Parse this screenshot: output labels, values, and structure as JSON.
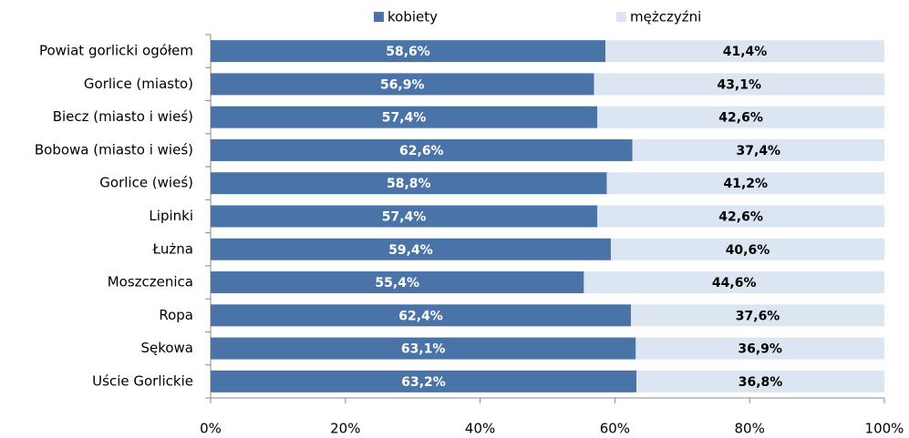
{
  "chart_data": {
    "type": "stacked-bar-horizontal",
    "categories": [
      "Powiat gorlicki ogółem",
      "Gorlice (miasto)",
      "Biecz (miasto  i wieś)",
      "Bobowa (miasto  i wieś)",
      "Gorlice (wieś)",
      "Lipinki",
      "Łużna",
      "Moszczenica",
      "Ropa",
      "Sękowa",
      "Uście Gorlickie"
    ],
    "series": [
      {
        "name": "kobiety",
        "color": "#4a74a8",
        "values": [
          58.6,
          56.9,
          57.4,
          62.6,
          58.8,
          57.4,
          59.4,
          55.4,
          62.4,
          63.1,
          63.2
        ],
        "value_labels": [
          "58,6%",
          "56,9%",
          "57,4%",
          "62,6%",
          "58,8%",
          "57,4%",
          "59,4%",
          "55,4%",
          "62,4%",
          "63,1%",
          "63,2%"
        ]
      },
      {
        "name": "mężczyźni",
        "color": "#dce6f2",
        "values": [
          41.4,
          43.1,
          42.6,
          37.4,
          41.2,
          42.6,
          40.6,
          44.6,
          37.6,
          36.9,
          36.8
        ],
        "value_labels": [
          "41,4%",
          "43,1%",
          "42,6%",
          "37,4%",
          "41,2%",
          "42,6%",
          "40,6%",
          "44,6%",
          "37,6%",
          "36,9%",
          "36,8%"
        ]
      }
    ],
    "xlim": [
      0,
      100
    ],
    "xticks": [
      {
        "value": 0,
        "label": "0%"
      },
      {
        "value": 20,
        "label": "20%"
      },
      {
        "value": 40,
        "label": "40%"
      },
      {
        "value": 60,
        "label": "60%"
      },
      {
        "value": 80,
        "label": "80%"
      },
      {
        "value": 100,
        "label": "100%"
      }
    ],
    "legend": "top"
  }
}
